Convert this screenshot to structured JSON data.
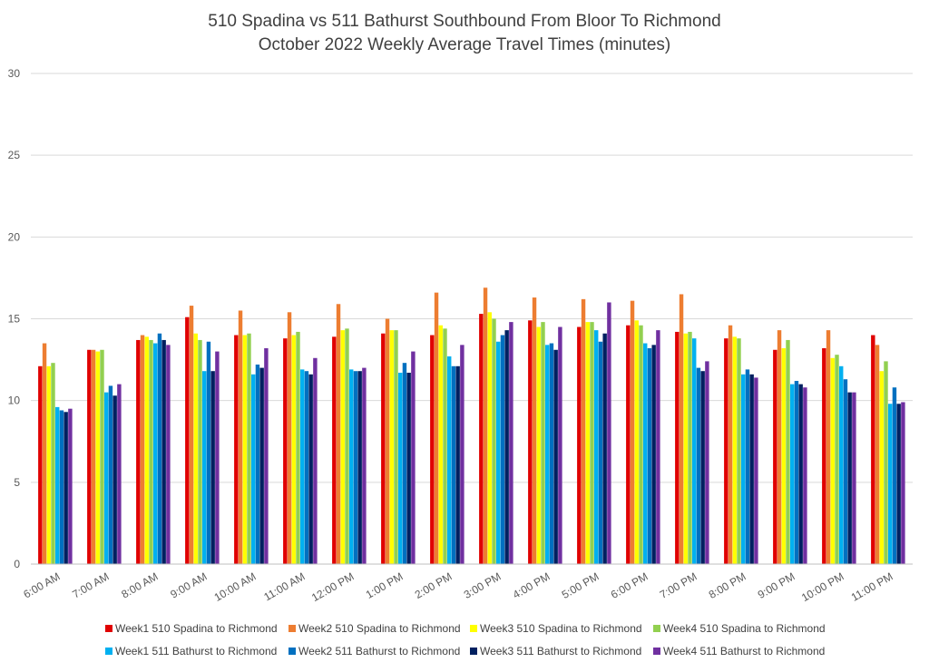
{
  "chart_data": {
    "type": "bar",
    "title": [
      "510 Spadina vs 511 Bathurst Southbound From Bloor To Richmond",
      "October 2022 Weekly Average Travel Times (minutes)"
    ],
    "xlabel": "",
    "ylabel": "",
    "ylim": [
      0,
      30
    ],
    "yticks": [
      0,
      5,
      10,
      15,
      20,
      25,
      30
    ],
    "grid": true,
    "legend_position": "bottom",
    "categories": [
      "6:00 AM",
      "7:00 AM",
      "8:00 AM",
      "9:00 AM",
      "10:00 AM",
      "11:00 AM",
      "12:00 PM",
      "1:00 PM",
      "2:00 PM",
      "3:00 PM",
      "4:00 PM",
      "5:00 PM",
      "6:00 PM",
      "7:00 PM",
      "8:00 PM",
      "9:00 PM",
      "10:00 PM",
      "11:00 PM"
    ],
    "series": [
      {
        "name": "Week1 510 Spadina to Richmond",
        "color": "#e00000",
        "values": [
          12.1,
          13.1,
          13.7,
          15.1,
          14.0,
          13.8,
          13.9,
          14.1,
          14.0,
          15.3,
          14.9,
          14.5,
          14.6,
          14.2,
          13.8,
          13.1,
          13.2,
          14.0
        ]
      },
      {
        "name": "Week2 510 Spadina to Richmond",
        "color": "#ed7d31",
        "values": [
          13.5,
          13.1,
          14.0,
          15.8,
          15.5,
          15.4,
          15.9,
          15.0,
          16.6,
          16.9,
          16.3,
          16.2,
          16.1,
          16.5,
          14.6,
          14.3,
          14.3,
          13.4
        ]
      },
      {
        "name": "Week3 510 Spadina to Richmond",
        "color": "#ffff00",
        "values": [
          12.1,
          13.0,
          13.9,
          14.1,
          14.0,
          14.0,
          14.3,
          14.3,
          14.6,
          15.4,
          14.5,
          14.8,
          14.9,
          14.1,
          13.9,
          13.2,
          12.6,
          11.8
        ]
      },
      {
        "name": "Week4 510 Spadina to Richmond",
        "color": "#92d050",
        "values": [
          12.3,
          13.1,
          13.7,
          13.7,
          14.1,
          14.2,
          14.4,
          14.3,
          14.4,
          15.0,
          14.8,
          14.8,
          14.6,
          14.2,
          13.8,
          13.7,
          12.8,
          12.4
        ]
      },
      {
        "name": "Week1 511 Bathurst to Richmond",
        "color": "#00b0f0",
        "values": [
          9.6,
          10.5,
          13.5,
          11.8,
          11.6,
          11.9,
          11.9,
          11.7,
          12.7,
          13.6,
          13.4,
          14.3,
          13.5,
          13.8,
          11.6,
          11.0,
          12.1,
          9.8
        ]
      },
      {
        "name": "Week2 511 Bathurst to Richmond",
        "color": "#0070c0",
        "values": [
          9.4,
          10.9,
          14.1,
          13.6,
          12.2,
          11.8,
          11.8,
          12.3,
          12.1,
          14.0,
          13.5,
          13.6,
          13.2,
          12.0,
          11.9,
          11.2,
          11.3,
          10.8
        ]
      },
      {
        "name": "Week3 511 Bathurst to Richmond",
        "color": "#002060",
        "values": [
          9.3,
          10.3,
          13.7,
          11.8,
          12.0,
          11.6,
          11.8,
          11.7,
          12.1,
          14.3,
          13.1,
          14.1,
          13.4,
          11.8,
          11.6,
          11.0,
          10.5,
          9.8
        ]
      },
      {
        "name": "Week4 511 Bathurst to Richmond",
        "color": "#7030a0",
        "values": [
          9.5,
          11.0,
          13.4,
          13.0,
          13.2,
          12.6,
          12.0,
          13.0,
          13.4,
          14.8,
          14.5,
          16.0,
          14.3,
          12.4,
          11.4,
          10.8,
          10.5,
          9.9
        ]
      }
    ]
  }
}
